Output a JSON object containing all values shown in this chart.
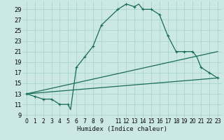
{
  "xlabel": "Humidex (Indice chaleur)",
  "bg_color": "#cce8e4",
  "grid_color": "#aad4ce",
  "line_color": "#1a6b5a",
  "xlim": [
    -0.5,
    23.5
  ],
  "ylim": [
    8.5,
    30.5
  ],
  "xticks": [
    0,
    1,
    2,
    3,
    4,
    5,
    6,
    7,
    8,
    9,
    11,
    12,
    13,
    14,
    15,
    16,
    17,
    18,
    19,
    20,
    21,
    22,
    23
  ],
  "yticks": [
    9,
    11,
    13,
    15,
    17,
    19,
    21,
    23,
    25,
    27,
    29
  ],
  "main_line_x": [
    0,
    1,
    2,
    3,
    4,
    5,
    5.3,
    6,
    7,
    8,
    9,
    11,
    12,
    13,
    13.5,
    14,
    15,
    16,
    17,
    18,
    19,
    20,
    20.5,
    21,
    22,
    23
  ],
  "main_line_y": [
    13,
    12.5,
    12,
    12,
    11,
    11,
    10,
    18,
    20,
    22,
    26,
    29,
    30,
    29.5,
    30,
    29,
    29,
    28,
    24,
    21,
    21,
    21,
    20,
    18,
    17,
    16
  ],
  "line2_x": [
    0,
    23
  ],
  "line2_y": [
    13,
    21
  ],
  "line3_x": [
    0,
    23
  ],
  "line3_y": [
    13,
    16
  ],
  "markers_x": [
    0,
    1,
    2,
    3,
    4,
    5,
    6,
    7,
    8,
    9,
    11,
    12,
    13,
    14,
    15,
    16,
    17,
    18,
    19,
    20,
    21,
    22,
    23
  ],
  "markers_y": [
    13,
    12.5,
    12,
    12,
    11,
    11,
    18,
    20,
    22,
    26,
    29,
    30,
    29.5,
    29,
    29,
    28,
    24,
    21,
    21,
    21,
    18,
    17,
    16
  ]
}
